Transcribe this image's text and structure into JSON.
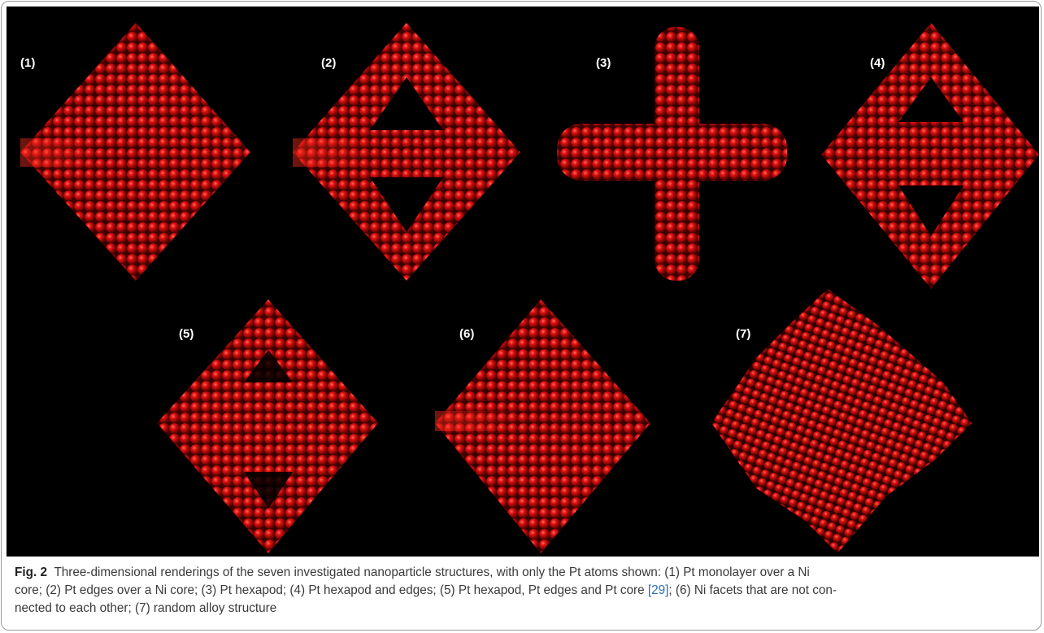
{
  "figure": {
    "panel_labels": [
      "(1)",
      "(2)",
      "(3)",
      "(4)",
      "(5)",
      "(6)",
      "(7)"
    ],
    "caption": {
      "label": "Fig. 2",
      "line1": "Three-dimensional renderings of the seven investigated nanoparticle structures, with only the Pt atoms shown: (1) Pt monolayer over a Ni",
      "line2_before": "core; (2) Pt edges over a Ni core; (3) Pt hexapod; (4) Pt hexapod and edges; (5) Pt hexapod, Pt edges and Pt core ",
      "reference": "[29]",
      "line2_after": "; (6) Ni facets that are not con-",
      "line3": "nected to each other; (7) random alloy structure"
    }
  }
}
